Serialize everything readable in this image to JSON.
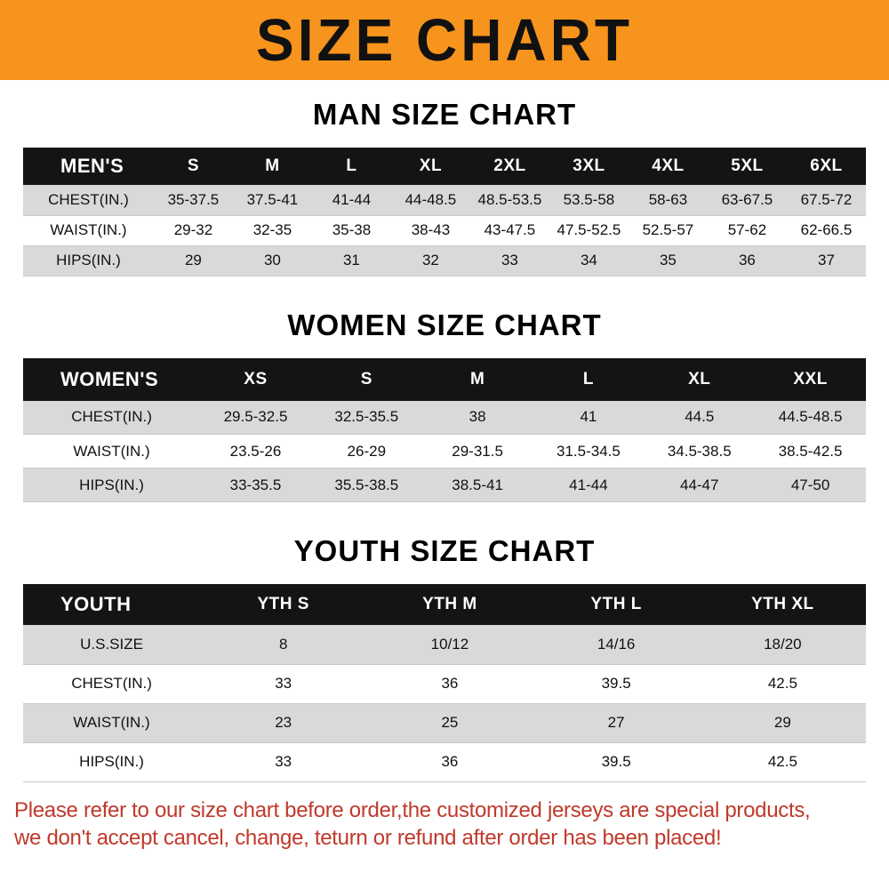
{
  "banner": {
    "title": "SIZE CHART",
    "bg_color": "#f7941d",
    "text_color": "#111111"
  },
  "chart_data": [
    {
      "type": "table",
      "title": "MAN SIZE CHART",
      "header": [
        "MEN'S",
        "S",
        "M",
        "L",
        "XL",
        "2XL",
        "3XL",
        "4XL",
        "5XL",
        "6XL"
      ],
      "rows": [
        [
          "CHEST(IN.)",
          "35-37.5",
          "37.5-41",
          "41-44",
          "44-48.5",
          "48.5-53.5",
          "53.5-58",
          "58-63",
          "63-67.5",
          "67.5-72"
        ],
        [
          "WAIST(IN.)",
          "29-32",
          "32-35",
          "35-38",
          "38-43",
          "43-47.5",
          "47.5-52.5",
          "52.5-57",
          "57-62",
          "62-66.5"
        ],
        [
          "HIPS(IN.)",
          "29",
          "30",
          "31",
          "32",
          "33",
          "34",
          "35",
          "36",
          "37"
        ]
      ]
    },
    {
      "type": "table",
      "title": "WOMEN SIZE CHART",
      "header": [
        "WOMEN'S",
        "XS",
        "S",
        "M",
        "L",
        "XL",
        "XXL"
      ],
      "rows": [
        [
          "CHEST(IN.)",
          "29.5-32.5",
          "32.5-35.5",
          "38",
          "41",
          "44.5",
          "44.5-48.5"
        ],
        [
          "WAIST(IN.)",
          "23.5-26",
          "26-29",
          "29-31.5",
          "31.5-34.5",
          "34.5-38.5",
          "38.5-42.5"
        ],
        [
          "HIPS(IN.)",
          "33-35.5",
          "35.5-38.5",
          "38.5-41",
          "41-44",
          "44-47",
          "47-50"
        ]
      ]
    },
    {
      "type": "table",
      "title": "YOUTH SIZE CHART",
      "header": [
        "YOUTH",
        "YTH S",
        "YTH M",
        "YTH L",
        "YTH XL"
      ],
      "rows": [
        [
          "U.S.SIZE",
          "8",
          "10/12",
          "14/16",
          "18/20"
        ],
        [
          "CHEST(IN.)",
          "33",
          "36",
          "39.5",
          "42.5"
        ],
        [
          "WAIST(IN.)",
          "23",
          "25",
          "27",
          "29"
        ],
        [
          "HIPS(IN.)",
          "33",
          "36",
          "39.5",
          "42.5"
        ]
      ]
    }
  ],
  "footer": {
    "line1": "Please refer to our size chart before order,the customized jerseys are special products,",
    "line2": "we don't accept cancel, change, teturn or refund after order has been placed!",
    "color": "#c0392b"
  }
}
